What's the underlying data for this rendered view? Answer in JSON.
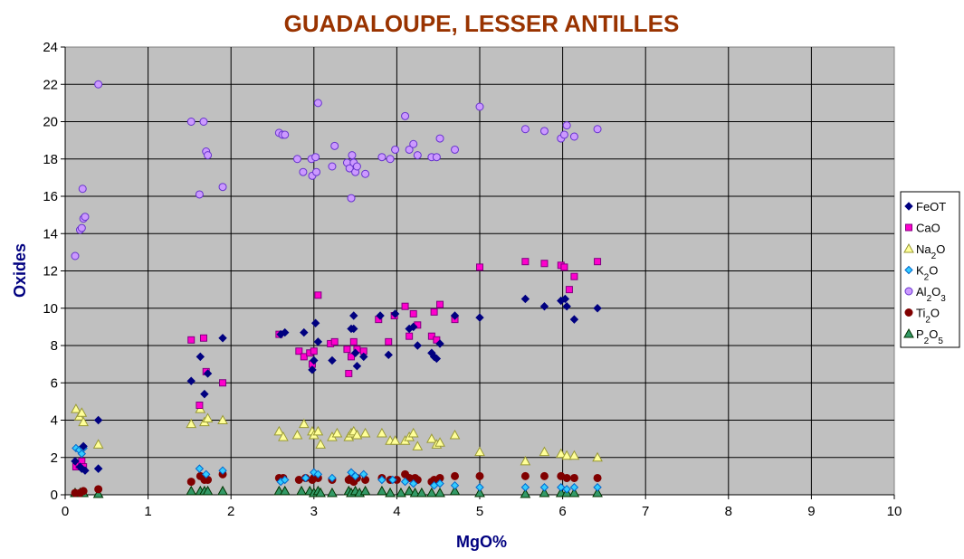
{
  "chart_data": {
    "type": "scatter",
    "title": "GUADALOUPE, LESSER ANTILLES",
    "xlabel": "MgO%",
    "ylabel": "Oxides",
    "xlim": [
      0,
      10
    ],
    "ylim": [
      0,
      24
    ],
    "x_ticks": [
      "0",
      "1",
      "2",
      "3",
      "4",
      "5",
      "6",
      "7",
      "8",
      "9",
      "10"
    ],
    "y_ticks": [
      "0",
      "2",
      "4",
      "6",
      "8",
      "10",
      "12",
      "14",
      "16",
      "18",
      "20",
      "22",
      "24"
    ],
    "grid": true,
    "legend_position": "right",
    "colors": {
      "title": "#993300",
      "axis_label": "#000080",
      "plot_background": "#c0c0c0"
    },
    "series": [
      {
        "name": "FeOT",
        "label_base": "FeO",
        "label_sub": "",
        "label_tail": "T",
        "marker": "diamond",
        "fill": "#000080",
        "stroke": "#000080",
        "points": [
          [
            0.12,
            1.8
          ],
          [
            0.18,
            1.5
          ],
          [
            0.2,
            1.4
          ],
          [
            0.22,
            2.6
          ],
          [
            0.24,
            1.3
          ],
          [
            0.4,
            4.0
          ],
          [
            0.4,
            1.4
          ],
          [
            1.52,
            6.1
          ],
          [
            1.63,
            7.4
          ],
          [
            1.68,
            5.4
          ],
          [
            1.72,
            6.5
          ],
          [
            1.9,
            8.4
          ],
          [
            2.6,
            8.6
          ],
          [
            2.65,
            8.7
          ],
          [
            2.88,
            8.7
          ],
          [
            2.98,
            6.7
          ],
          [
            3.0,
            7.2
          ],
          [
            3.02,
            9.2
          ],
          [
            3.05,
            8.2
          ],
          [
            3.22,
            7.2
          ],
          [
            3.45,
            8.9
          ],
          [
            3.48,
            9.6
          ],
          [
            3.48,
            8.9
          ],
          [
            3.5,
            7.6
          ],
          [
            3.52,
            6.9
          ],
          [
            3.6,
            7.4
          ],
          [
            3.8,
            9.6
          ],
          [
            3.9,
            7.5
          ],
          [
            3.98,
            9.7
          ],
          [
            4.15,
            8.9
          ],
          [
            4.2,
            9.0
          ],
          [
            4.25,
            8.0
          ],
          [
            4.42,
            7.6
          ],
          [
            4.45,
            7.4
          ],
          [
            4.48,
            7.3
          ],
          [
            4.52,
            8.1
          ],
          [
            4.7,
            9.6
          ],
          [
            5.0,
            9.5
          ],
          [
            5.55,
            10.5
          ],
          [
            5.78,
            10.1
          ],
          [
            5.98,
            10.4
          ],
          [
            6.03,
            10.5
          ],
          [
            6.05,
            10.1
          ],
          [
            6.14,
            9.4
          ],
          [
            6.42,
            10.0
          ]
        ]
      },
      {
        "name": "CaO",
        "label_base": "CaO",
        "label_sub": "",
        "label_tail": "",
        "marker": "square",
        "fill": "#ff00cc",
        "stroke": "#800080",
        "points": [
          [
            0.13,
            1.5
          ],
          [
            0.17,
            1.6
          ],
          [
            0.2,
            1.8
          ],
          [
            0.22,
            1.5
          ],
          [
            1.52,
            8.3
          ],
          [
            1.62,
            4.8
          ],
          [
            1.67,
            8.4
          ],
          [
            1.7,
            6.6
          ],
          [
            1.9,
            6.0
          ],
          [
            2.58,
            8.6
          ],
          [
            2.82,
            7.7
          ],
          [
            2.88,
            7.4
          ],
          [
            2.95,
            7.6
          ],
          [
            2.98,
            7.0
          ],
          [
            3.0,
            7.7
          ],
          [
            3.05,
            10.7
          ],
          [
            3.2,
            8.1
          ],
          [
            3.25,
            8.2
          ],
          [
            3.4,
            7.8
          ],
          [
            3.42,
            6.5
          ],
          [
            3.45,
            7.4
          ],
          [
            3.48,
            8.2
          ],
          [
            3.52,
            7.8
          ],
          [
            3.6,
            7.7
          ],
          [
            3.78,
            9.4
          ],
          [
            3.9,
            8.2
          ],
          [
            3.97,
            9.6
          ],
          [
            4.1,
            10.1
          ],
          [
            4.15,
            8.5
          ],
          [
            4.2,
            9.7
          ],
          [
            4.25,
            9.1
          ],
          [
            4.42,
            8.5
          ],
          [
            4.45,
            9.8
          ],
          [
            4.48,
            8.3
          ],
          [
            4.52,
            10.2
          ],
          [
            4.7,
            9.4
          ],
          [
            5.0,
            12.2
          ],
          [
            5.55,
            12.5
          ],
          [
            5.78,
            12.4
          ],
          [
            5.98,
            12.3
          ],
          [
            6.02,
            12.2
          ],
          [
            6.08,
            11.0
          ],
          [
            6.14,
            11.7
          ],
          [
            6.42,
            12.5
          ]
        ]
      },
      {
        "name": "Na2O",
        "label_base": "Na",
        "label_sub": "2",
        "label_tail": "O",
        "marker": "triangle",
        "fill": "#ffff99",
        "stroke": "#999933",
        "points": [
          [
            0.13,
            4.6
          ],
          [
            0.17,
            4.2
          ],
          [
            0.2,
            4.4
          ],
          [
            0.22,
            3.9
          ],
          [
            0.4,
            2.7
          ],
          [
            1.52,
            3.8
          ],
          [
            1.63,
            4.6
          ],
          [
            1.68,
            3.9
          ],
          [
            1.72,
            4.1
          ],
          [
            1.9,
            4.0
          ],
          [
            2.58,
            3.4
          ],
          [
            2.63,
            3.1
          ],
          [
            2.8,
            3.2
          ],
          [
            2.88,
            3.8
          ],
          [
            2.98,
            3.4
          ],
          [
            3.0,
            3.2
          ],
          [
            3.05,
            3.4
          ],
          [
            3.08,
            2.7
          ],
          [
            3.22,
            3.1
          ],
          [
            3.28,
            3.3
          ],
          [
            3.42,
            3.1
          ],
          [
            3.45,
            3.3
          ],
          [
            3.48,
            3.4
          ],
          [
            3.52,
            3.2
          ],
          [
            3.62,
            3.3
          ],
          [
            3.82,
            3.3
          ],
          [
            3.92,
            2.9
          ],
          [
            3.98,
            2.9
          ],
          [
            4.1,
            2.9
          ],
          [
            4.15,
            3.1
          ],
          [
            4.2,
            3.3
          ],
          [
            4.25,
            2.6
          ],
          [
            4.42,
            3.0
          ],
          [
            4.48,
            2.7
          ],
          [
            4.52,
            2.8
          ],
          [
            4.7,
            3.2
          ],
          [
            5.0,
            2.3
          ],
          [
            5.55,
            1.8
          ],
          [
            5.78,
            2.3
          ],
          [
            5.98,
            2.2
          ],
          [
            6.05,
            2.1
          ],
          [
            6.14,
            2.1
          ],
          [
            6.42,
            2.0
          ]
        ]
      },
      {
        "name": "K2O",
        "label_base": "K",
        "label_sub": "2",
        "label_tail": "O",
        "marker": "diamond",
        "fill": "#33ccff",
        "stroke": "#0066cc",
        "points": [
          [
            0.13,
            2.5
          ],
          [
            0.17,
            2.4
          ],
          [
            0.2,
            2.2
          ],
          [
            0.22,
            2.5
          ],
          [
            0.4,
            1.4
          ],
          [
            1.62,
            1.4
          ],
          [
            1.7,
            1.1
          ],
          [
            1.9,
            1.3
          ],
          [
            2.6,
            0.7
          ],
          [
            2.65,
            0.8
          ],
          [
            2.9,
            0.9
          ],
          [
            3.0,
            1.2
          ],
          [
            3.05,
            1.1
          ],
          [
            3.22,
            0.9
          ],
          [
            3.45,
            1.2
          ],
          [
            3.5,
            1.0
          ],
          [
            3.6,
            1.1
          ],
          [
            3.82,
            0.8
          ],
          [
            3.95,
            0.8
          ],
          [
            4.1,
            0.7
          ],
          [
            4.2,
            0.6
          ],
          [
            4.45,
            0.5
          ],
          [
            4.52,
            0.6
          ],
          [
            4.7,
            0.5
          ],
          [
            5.0,
            0.4
          ],
          [
            5.55,
            0.4
          ],
          [
            5.78,
            0.4
          ],
          [
            5.98,
            0.4
          ],
          [
            6.05,
            0.3
          ],
          [
            6.14,
            0.4
          ],
          [
            6.42,
            0.4
          ]
        ]
      },
      {
        "name": "Al2O3",
        "label_base": "Al",
        "label_sub": "2",
        "label_tail": "O3",
        "marker": "circle",
        "fill": "#cc99ff",
        "stroke": "#6633cc",
        "points": [
          [
            0.12,
            12.8
          ],
          [
            0.18,
            14.2
          ],
          [
            0.2,
            14.3
          ],
          [
            0.21,
            16.4
          ],
          [
            0.22,
            14.8
          ],
          [
            0.24,
            14.9
          ],
          [
            0.4,
            22.0
          ],
          [
            1.52,
            20.0
          ],
          [
            1.62,
            16.1
          ],
          [
            1.67,
            20.0
          ],
          [
            1.7,
            18.4
          ],
          [
            1.72,
            18.2
          ],
          [
            1.9,
            16.5
          ],
          [
            2.58,
            19.4
          ],
          [
            2.62,
            19.3
          ],
          [
            2.65,
            19.3
          ],
          [
            2.8,
            18.0
          ],
          [
            2.87,
            17.3
          ],
          [
            2.97,
            18.0
          ],
          [
            2.98,
            17.1
          ],
          [
            3.02,
            18.1
          ],
          [
            3.03,
            17.3
          ],
          [
            3.05,
            21.0
          ],
          [
            3.22,
            17.6
          ],
          [
            3.25,
            18.7
          ],
          [
            3.4,
            17.8
          ],
          [
            3.43,
            17.5
          ],
          [
            3.45,
            15.9
          ],
          [
            3.46,
            18.2
          ],
          [
            3.48,
            17.8
          ],
          [
            3.5,
            17.3
          ],
          [
            3.52,
            17.6
          ],
          [
            3.62,
            17.2
          ],
          [
            3.82,
            18.1
          ],
          [
            3.92,
            18.0
          ],
          [
            3.98,
            18.5
          ],
          [
            4.1,
            20.3
          ],
          [
            4.15,
            18.5
          ],
          [
            4.2,
            18.8
          ],
          [
            4.25,
            18.2
          ],
          [
            4.42,
            18.1
          ],
          [
            4.48,
            18.1
          ],
          [
            4.52,
            19.1
          ],
          [
            4.7,
            18.5
          ],
          [
            5.0,
            20.8
          ],
          [
            5.55,
            19.6
          ],
          [
            5.78,
            19.5
          ],
          [
            5.98,
            19.1
          ],
          [
            6.02,
            19.3
          ],
          [
            6.05,
            19.8
          ],
          [
            6.14,
            19.2
          ],
          [
            6.42,
            19.6
          ]
        ]
      },
      {
        "name": "TiO2",
        "label_base": "Ti",
        "label_sub": "2",
        "label_tail": "O",
        "marker": "circle",
        "fill": "#800000",
        "stroke": "#800000",
        "points": [
          [
            0.12,
            0.1
          ],
          [
            0.18,
            0.1
          ],
          [
            0.22,
            0.2
          ],
          [
            0.4,
            0.3
          ],
          [
            1.52,
            0.7
          ],
          [
            1.63,
            1.0
          ],
          [
            1.68,
            0.8
          ],
          [
            1.72,
            0.8
          ],
          [
            1.9,
            1.1
          ],
          [
            2.58,
            0.9
          ],
          [
            2.63,
            0.9
          ],
          [
            2.82,
            0.8
          ],
          [
            2.9,
            0.9
          ],
          [
            2.98,
            0.8
          ],
          [
            3.0,
            0.9
          ],
          [
            3.05,
            0.9
          ],
          [
            3.22,
            0.8
          ],
          [
            3.42,
            0.8
          ],
          [
            3.45,
            0.9
          ],
          [
            3.48,
            0.7
          ],
          [
            3.52,
            0.9
          ],
          [
            3.62,
            0.8
          ],
          [
            3.82,
            0.9
          ],
          [
            3.92,
            0.8
          ],
          [
            4.0,
            0.8
          ],
          [
            4.1,
            1.1
          ],
          [
            4.15,
            0.9
          ],
          [
            4.22,
            0.9
          ],
          [
            4.25,
            0.8
          ],
          [
            4.42,
            0.7
          ],
          [
            4.45,
            0.8
          ],
          [
            4.52,
            0.9
          ],
          [
            4.7,
            1.0
          ],
          [
            5.0,
            1.0
          ],
          [
            5.55,
            1.0
          ],
          [
            5.78,
            1.0
          ],
          [
            5.98,
            1.0
          ],
          [
            6.05,
            0.9
          ],
          [
            6.14,
            0.9
          ],
          [
            6.42,
            0.9
          ]
        ]
      },
      {
        "name": "P2O5",
        "label_base": "P",
        "label_sub": "2",
        "label_tail": "O5",
        "marker": "triangle",
        "fill": "#339966",
        "stroke": "#003300",
        "points": [
          [
            0.12,
            0.1
          ],
          [
            0.18,
            0.1
          ],
          [
            0.22,
            0.1
          ],
          [
            0.4,
            0.05
          ],
          [
            1.52,
            0.2
          ],
          [
            1.63,
            0.2
          ],
          [
            1.68,
            0.2
          ],
          [
            1.72,
            0.2
          ],
          [
            1.9,
            0.2
          ],
          [
            2.58,
            0.2
          ],
          [
            2.65,
            0.2
          ],
          [
            2.85,
            0.2
          ],
          [
            2.95,
            0.2
          ],
          [
            3.0,
            0.1
          ],
          [
            3.05,
            0.2
          ],
          [
            3.08,
            0.1
          ],
          [
            3.22,
            0.1
          ],
          [
            3.42,
            0.2
          ],
          [
            3.45,
            0.1
          ],
          [
            3.5,
            0.2
          ],
          [
            3.55,
            0.1
          ],
          [
            3.62,
            0.2
          ],
          [
            3.82,
            0.2
          ],
          [
            3.92,
            0.1
          ],
          [
            4.05,
            0.1
          ],
          [
            4.15,
            0.2
          ],
          [
            4.22,
            0.1
          ],
          [
            4.3,
            0.1
          ],
          [
            4.42,
            0.1
          ],
          [
            4.52,
            0.1
          ],
          [
            4.7,
            0.2
          ],
          [
            5.0,
            0.1
          ],
          [
            5.55,
            0.05
          ],
          [
            5.78,
            0.1
          ],
          [
            5.98,
            0.1
          ],
          [
            6.05,
            0.1
          ],
          [
            6.14,
            0.1
          ],
          [
            6.42,
            0.1
          ]
        ]
      }
    ]
  }
}
